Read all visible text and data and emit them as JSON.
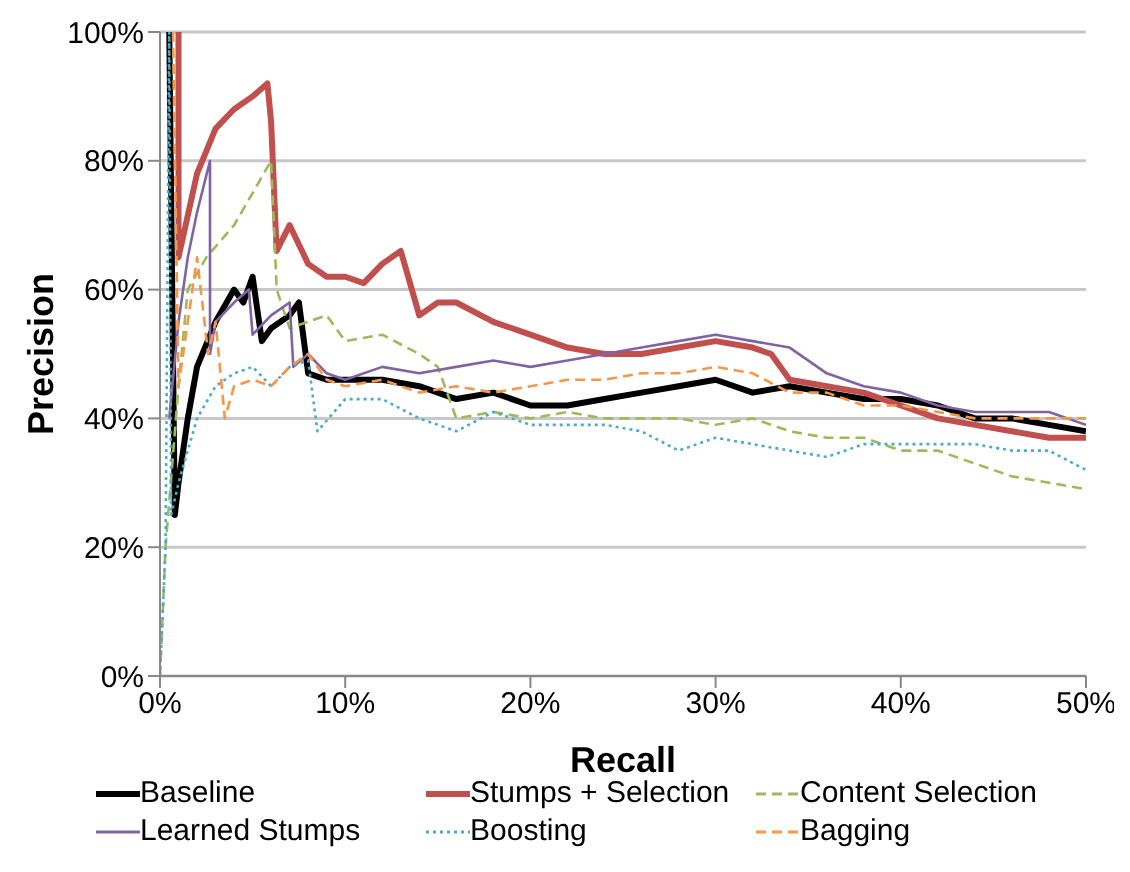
{
  "chart_data": {
    "type": "line",
    "xlabel": "Recall",
    "ylabel": "Precision",
    "xlim": [
      0,
      50
    ],
    "ylim": [
      0,
      100
    ],
    "xticks": [
      {
        "value": 0,
        "label": "0%"
      },
      {
        "value": 10,
        "label": "10%"
      },
      {
        "value": 20,
        "label": "20%"
      },
      {
        "value": 30,
        "label": "30%"
      },
      {
        "value": 40,
        "label": "40%"
      },
      {
        "value": 50,
        "label": "50%"
      }
    ],
    "yticks": [
      {
        "value": 0,
        "label": "0%"
      },
      {
        "value": 20,
        "label": "20%"
      },
      {
        "value": 40,
        "label": "40%"
      },
      {
        "value": 60,
        "label": "60%"
      },
      {
        "value": 80,
        "label": "80%"
      },
      {
        "value": 100,
        "label": "100%"
      }
    ],
    "grid": "y",
    "legend": "bottom",
    "marker": "none",
    "series": [
      {
        "name": "Baseline",
        "color": "#000000",
        "line_style": "solid",
        "x": [
          0.5,
          0.8,
          1,
          1.5,
          2,
          3,
          4,
          4.5,
          5,
          5.5,
          6,
          7,
          7.5,
          8,
          9,
          10,
          12,
          14,
          16,
          18,
          20,
          22,
          24,
          26,
          28,
          30,
          32,
          34,
          36,
          38,
          40,
          42,
          44,
          46,
          48,
          50
        ],
        "values": [
          100,
          25,
          30,
          40,
          48,
          55,
          60,
          58,
          62,
          52,
          54,
          56,
          58,
          47,
          46,
          46,
          46,
          45,
          43,
          44,
          42,
          42,
          43,
          44,
          45,
          46,
          44,
          45,
          44,
          43,
          43,
          42,
          40,
          40,
          39,
          38
        ]
      },
      {
        "name": "Stumps + Selection",
        "color": "#c0504d",
        "line_style": "solid",
        "x": [
          1,
          1,
          2,
          3,
          4,
          5,
          5.8,
          6,
          6.3,
          7,
          8,
          9,
          10,
          11,
          12,
          13,
          14,
          15,
          16,
          18,
          20,
          22,
          24,
          26,
          28,
          30,
          32,
          33,
          34,
          36,
          38,
          40,
          42,
          44,
          46,
          48,
          50
        ],
        "values": [
          100,
          65,
          78,
          85,
          88,
          90,
          92,
          86,
          66,
          70,
          64,
          62,
          62,
          61,
          64,
          66,
          56,
          58,
          58,
          55,
          53,
          51,
          50,
          50,
          51,
          52,
          51,
          50,
          46,
          45,
          44,
          42,
          40,
          39,
          38,
          37,
          37
        ]
      },
      {
        "name": "Content Selection",
        "color": "#9bbb59",
        "line_style": "dashed",
        "x": [
          0,
          0.3,
          1,
          1.5,
          2.5,
          4,
          6,
          6.3,
          7,
          8,
          9,
          10,
          12,
          14,
          15,
          16,
          18,
          20,
          22,
          24,
          26,
          28,
          30,
          32,
          34,
          36,
          38,
          40,
          42,
          44,
          46,
          48,
          50
        ],
        "values": [
          0,
          20,
          45,
          60,
          65,
          70,
          80,
          60,
          54,
          55,
          56,
          52,
          53,
          50,
          48,
          40,
          41,
          40,
          41,
          40,
          40,
          40,
          39,
          40,
          38,
          37,
          37,
          35,
          35,
          33,
          31,
          30,
          29
        ]
      },
      {
        "name": "Learned Stumps",
        "color": "#8064a2",
        "line_style": "solid",
        "x": [
          0.5,
          1,
          1.5,
          2,
          2.7,
          2.7,
          3,
          4,
          4.8,
          5,
          6,
          7,
          7.2,
          8,
          9,
          10,
          12,
          14,
          16,
          18,
          20,
          22,
          24,
          26,
          28,
          30,
          32,
          34,
          36,
          38,
          40,
          42,
          44,
          46,
          48,
          50
        ],
        "values": [
          40,
          55,
          65,
          72,
          80,
          50,
          55,
          58,
          60,
          53,
          56,
          58,
          48,
          50,
          47,
          46,
          48,
          47,
          48,
          49,
          48,
          49,
          50,
          51,
          52,
          53,
          52,
          51,
          47,
          45,
          44,
          42,
          41,
          41,
          41,
          39
        ]
      },
      {
        "name": "Boosting",
        "color": "#4bacc6",
        "line_style": "dotted",
        "x": [
          0,
          0.3,
          0.5,
          0.6,
          1,
          2,
          3,
          4,
          5,
          6,
          7,
          8,
          8.5,
          10,
          12,
          14,
          16,
          18,
          20,
          22,
          24,
          26,
          28,
          30,
          32,
          34,
          36,
          38,
          40,
          42,
          44,
          46,
          48,
          50
        ],
        "values": [
          0,
          20,
          100,
          25,
          30,
          40,
          45,
          47,
          48,
          45,
          48,
          49,
          38,
          43,
          43,
          40,
          38,
          41,
          39,
          39,
          39,
          38,
          35,
          37,
          36,
          35,
          34,
          36,
          36,
          36,
          36,
          35,
          35,
          32
        ]
      },
      {
        "name": "Bagging",
        "color": "#f79646",
        "line_style": "dashed",
        "x": [
          0.7,
          1,
          2,
          2.6,
          3,
          3.5,
          4,
          5,
          6,
          7,
          8,
          9,
          10,
          12,
          14,
          16,
          18,
          20,
          22,
          24,
          26,
          28,
          30,
          32,
          34,
          36,
          38,
          40,
          42,
          44,
          46,
          48,
          50
        ],
        "values": [
          100,
          45,
          65,
          50,
          55,
          40,
          45,
          46,
          45,
          48,
          50,
          46,
          45,
          46,
          44,
          45,
          44,
          45,
          46,
          46,
          47,
          47,
          48,
          47,
          44,
          44,
          42,
          42,
          41,
          40,
          40,
          40,
          40
        ]
      }
    ]
  }
}
